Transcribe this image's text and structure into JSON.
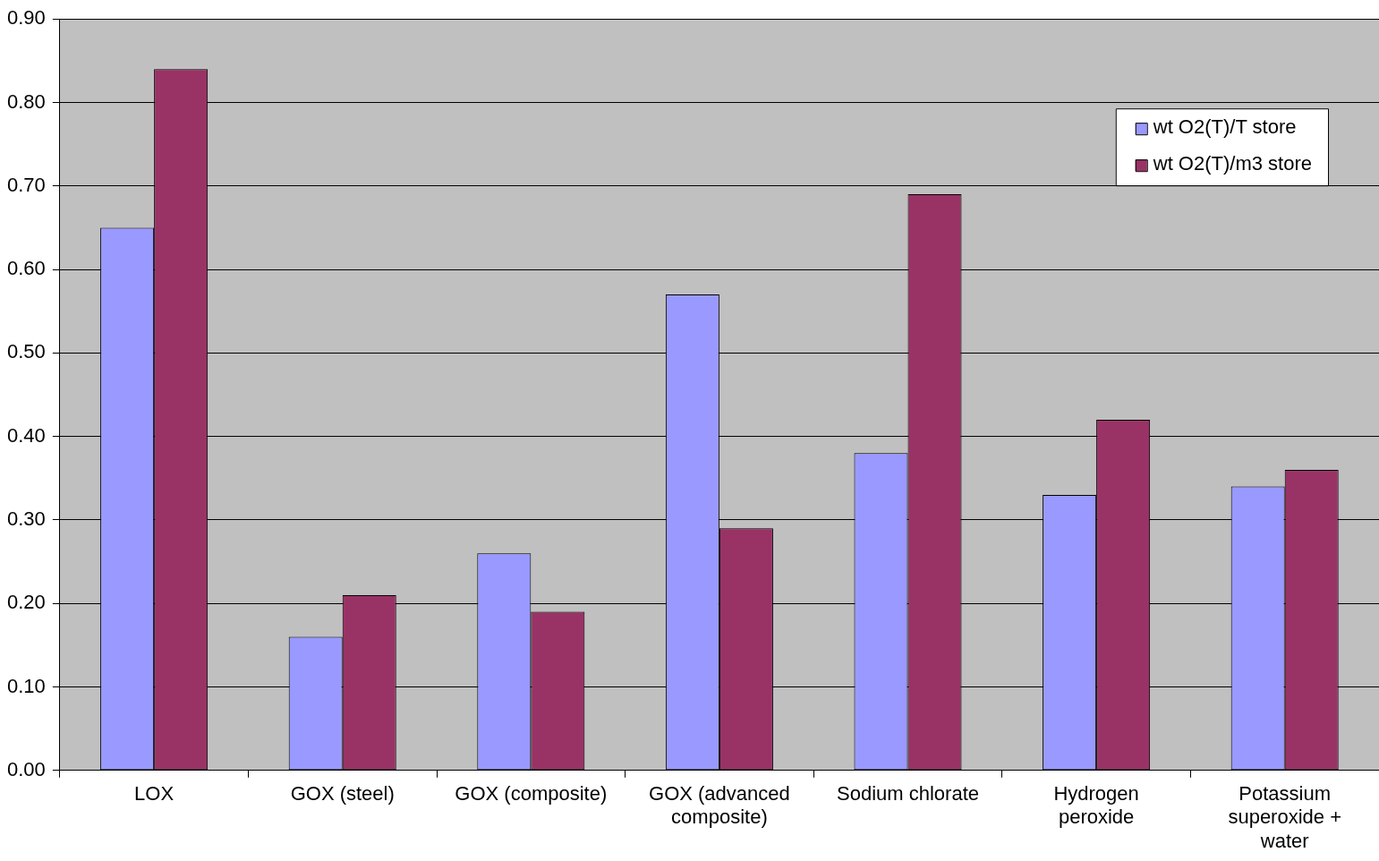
{
  "chart_data": {
    "type": "bar",
    "categories": [
      "LOX",
      "GOX (steel)",
      "GOX (composite)",
      "GOX (advanced composite)",
      "Sodium chlorate",
      "Hydrogen peroxide",
      "Potassium superoxide + water"
    ],
    "series": [
      {
        "name": "wt O2(T)/T store",
        "color": "#9999ff",
        "values": [
          0.65,
          0.16,
          0.26,
          0.57,
          0.38,
          0.33,
          0.34
        ]
      },
      {
        "name": "wt O2(T)/m3 store",
        "color": "#993366",
        "values": [
          0.84,
          0.21,
          0.19,
          0.29,
          0.69,
          0.42,
          0.36
        ]
      }
    ],
    "ylim": [
      0,
      0.9
    ],
    "yticks": [
      {
        "value": 0,
        "label": "0.00"
      },
      {
        "value": 0.1,
        "label": "0.10"
      },
      {
        "value": 0.2,
        "label": "0.20"
      },
      {
        "value": 0.3,
        "label": "0.30"
      },
      {
        "value": 0.4,
        "label": "0.40"
      },
      {
        "value": 0.5,
        "label": "0.50"
      },
      {
        "value": 0.6,
        "label": "0.60"
      },
      {
        "value": 0.7,
        "label": "0.70"
      },
      {
        "value": 0.8,
        "label": "0.80"
      },
      {
        "value": 0.9,
        "label": "0.90"
      }
    ],
    "grid": "y",
    "legend": "top right"
  }
}
